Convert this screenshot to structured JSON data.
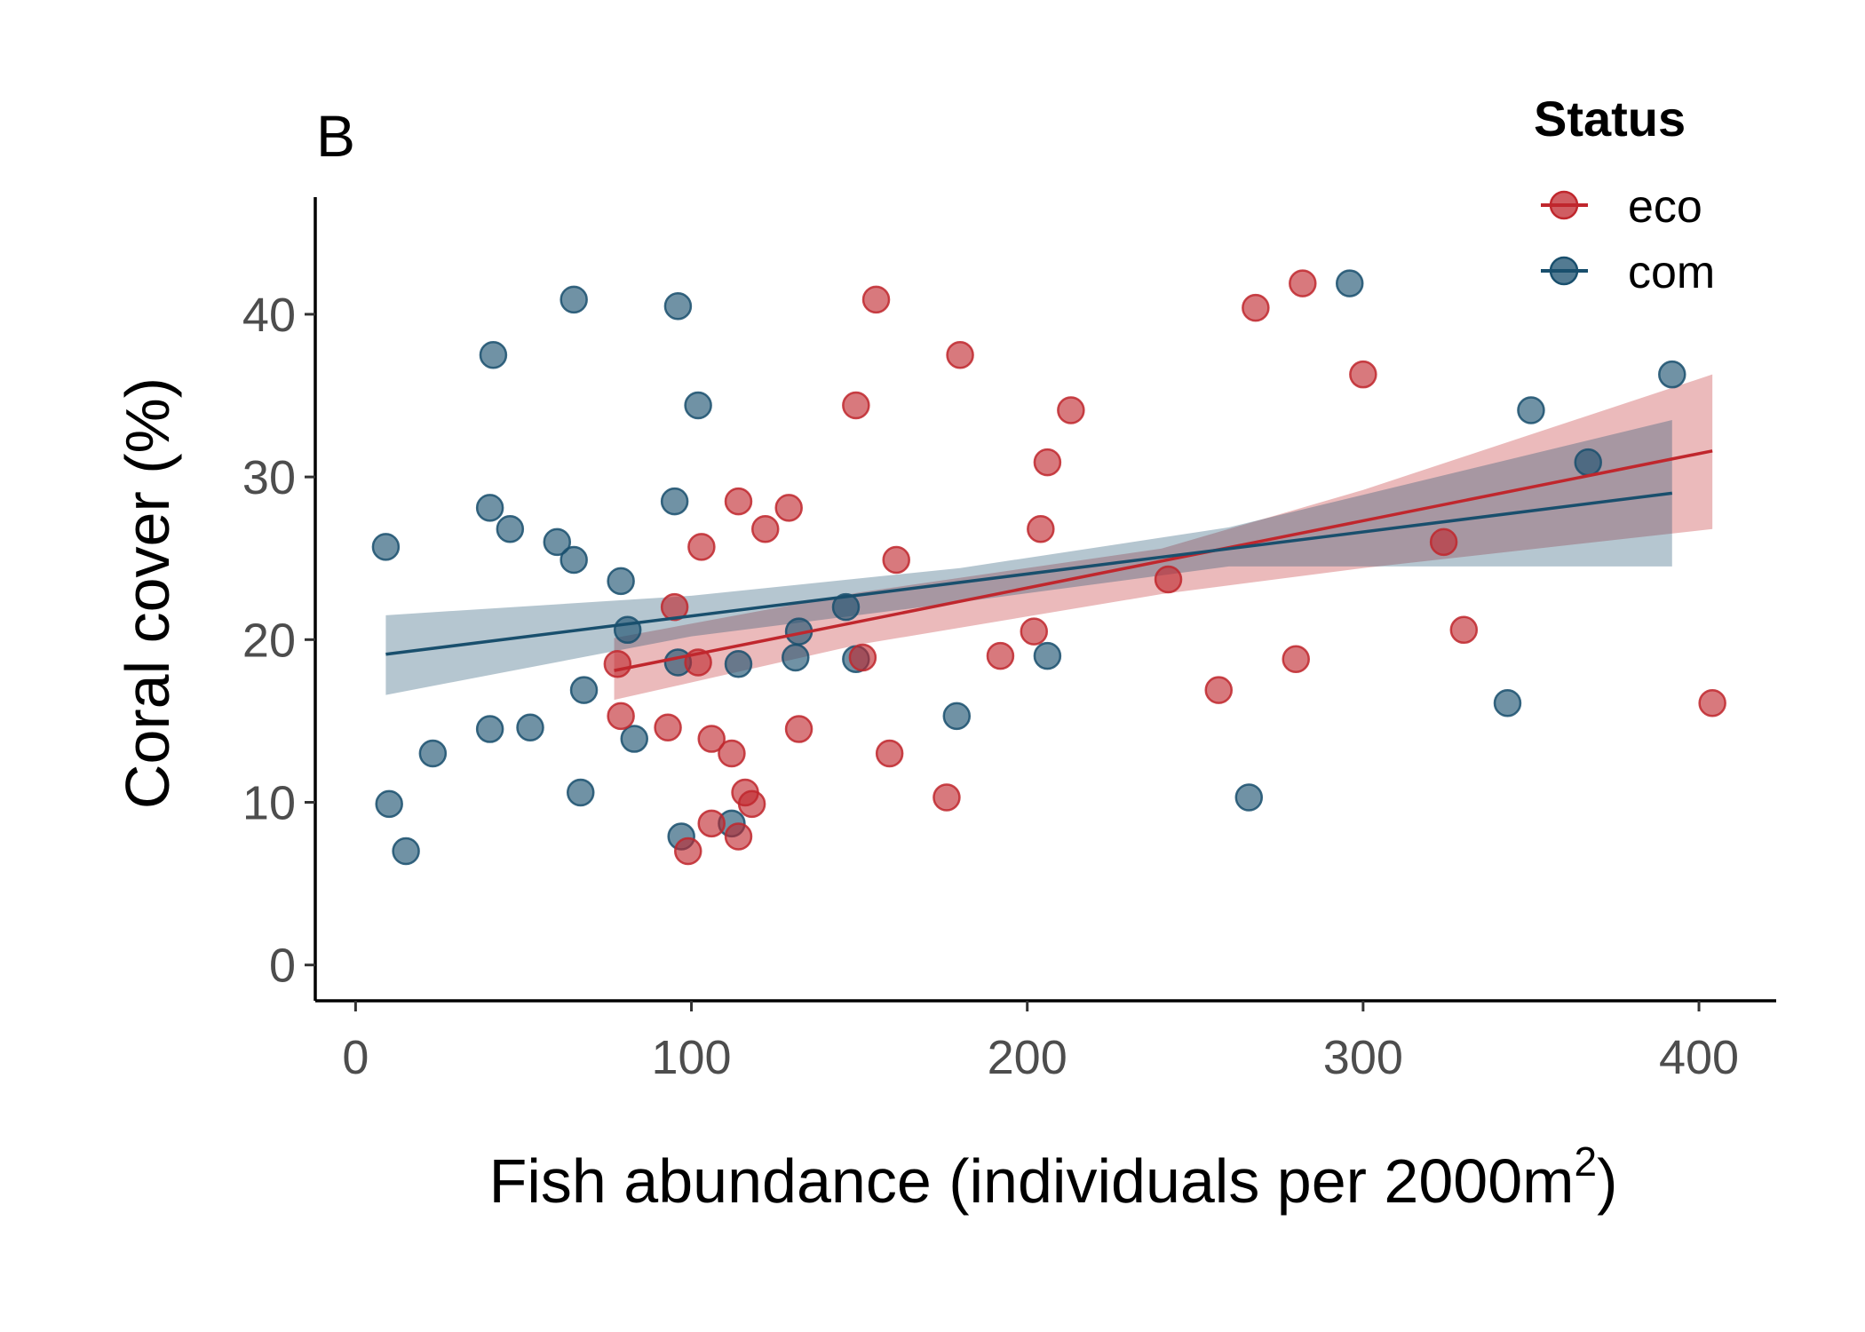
{
  "chart_data": {
    "type": "scatter",
    "panel_label": "B",
    "xlabel": "Fish abundance (individuals per 2000m",
    "xlabel_superscript": "2",
    "xlabel_suffix": ")",
    "ylabel": "Coral cover (%)",
    "xlim": [
      -12,
      423
    ],
    "ylim": [
      -2.2,
      47.2
    ],
    "x_ticks": [
      0,
      100,
      200,
      300,
      400
    ],
    "y_ticks": [
      0,
      10,
      20,
      30,
      40
    ],
    "grid": false,
    "legend": {
      "title": "Status",
      "placement": "top-right"
    },
    "series": [
      {
        "name": "eco",
        "color": "#c0272d",
        "points": [
          [
            78,
            18.5
          ],
          [
            79,
            15.3
          ],
          [
            93,
            14.6
          ],
          [
            95,
            22
          ],
          [
            99,
            7
          ],
          [
            102,
            18.6
          ],
          [
            103,
            25.7
          ],
          [
            106,
            8.7
          ],
          [
            106,
            13.9
          ],
          [
            112,
            13
          ],
          [
            114,
            7.9
          ],
          [
            114,
            28.5
          ],
          [
            116,
            10.6
          ],
          [
            118,
            9.9
          ],
          [
            122,
            26.8
          ],
          [
            129,
            28.1
          ],
          [
            132,
            14.5
          ],
          [
            149,
            34.4
          ],
          [
            151,
            18.9
          ],
          [
            155,
            40.9
          ],
          [
            159,
            13
          ],
          [
            161,
            24.9
          ],
          [
            176,
            10.3
          ],
          [
            180,
            37.5
          ],
          [
            192,
            19
          ],
          [
            202,
            20.5
          ],
          [
            204,
            26.8
          ],
          [
            206,
            30.9
          ],
          [
            213,
            34.1
          ],
          [
            242,
            23.7
          ],
          [
            257,
            16.9
          ],
          [
            268,
            40.4
          ],
          [
            280,
            18.8
          ],
          [
            282,
            41.9
          ],
          [
            300,
            36.3
          ],
          [
            324,
            26
          ],
          [
            330,
            20.6
          ],
          [
            404,
            16.1
          ]
        ],
        "fit": {
          "x": [
            77,
            404
          ],
          "y": [
            18.1,
            31.6
          ]
        },
        "ci_upper": [
          [
            77,
            20.1
          ],
          [
            150,
            22.9
          ],
          [
            240,
            25.6
          ],
          [
            300,
            29.2
          ],
          [
            404,
            36.3
          ]
        ],
        "ci_lower": [
          [
            77,
            16.3
          ],
          [
            150,
            19.7
          ],
          [
            240,
            22.8
          ],
          [
            300,
            24.4
          ],
          [
            404,
            26.8
          ]
        ]
      },
      {
        "name": "com",
        "color": "#194f6d",
        "points": [
          [
            9,
            25.7
          ],
          [
            10,
            9.9
          ],
          [
            15,
            7
          ],
          [
            23,
            13
          ],
          [
            40,
            14.5
          ],
          [
            40,
            28.1
          ],
          [
            41,
            37.5
          ],
          [
            46,
            26.8
          ],
          [
            52,
            14.6
          ],
          [
            60,
            26
          ],
          [
            65,
            24.9
          ],
          [
            65,
            40.9
          ],
          [
            67,
            10.6
          ],
          [
            68,
            16.9
          ],
          [
            79,
            23.6
          ],
          [
            81,
            20.6
          ],
          [
            83,
            13.9
          ],
          [
            95,
            28.5
          ],
          [
            96,
            40.5
          ],
          [
            96,
            18.6
          ],
          [
            97,
            7.9
          ],
          [
            102,
            34.4
          ],
          [
            112,
            8.7
          ],
          [
            114,
            18.5
          ],
          [
            131,
            18.9
          ],
          [
            132,
            20.5
          ],
          [
            146,
            22
          ],
          [
            149,
            18.8
          ],
          [
            179,
            15.3
          ],
          [
            206,
            19
          ],
          [
            266,
            10.3
          ],
          [
            296,
            41.9
          ],
          [
            343,
            16.1
          ],
          [
            350,
            34.1
          ],
          [
            367,
            30.9
          ],
          [
            392,
            36.3
          ]
        ],
        "fit": {
          "x": [
            9,
            392
          ],
          "y": [
            19.1,
            29
          ]
        },
        "ci_upper": [
          [
            9,
            21.5
          ],
          [
            100,
            22.7
          ],
          [
            180,
            24.4
          ],
          [
            260,
            26.9
          ],
          [
            392,
            33.5
          ]
        ],
        "ci_lower": [
          [
            9,
            16.6
          ],
          [
            100,
            20.2
          ],
          [
            180,
            22.3
          ],
          [
            260,
            24.5
          ],
          [
            392,
            24.5
          ]
        ]
      }
    ]
  }
}
